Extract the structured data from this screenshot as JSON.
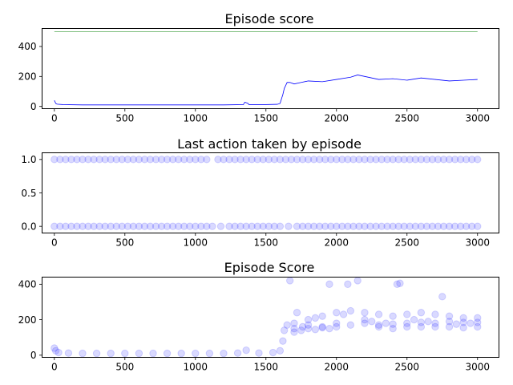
{
  "chart_data": [
    {
      "type": "line",
      "title": "Episode score",
      "xlabel": "",
      "ylabel": "",
      "xlim": [
        -87,
        3152
      ],
      "ylim": [
        -15,
        520
      ],
      "xticks": [
        0,
        500,
        1000,
        1500,
        2000,
        2500,
        3000
      ],
      "yticks": [
        0,
        200,
        400
      ],
      "x_ticklabels": [
        "0",
        "500",
        "1000",
        "1500",
        "2000",
        "2500",
        "3000"
      ],
      "y_ticklabels": [
        "0",
        "200",
        "400"
      ],
      "grid": false,
      "series": [
        {
          "color": "#0000ff",
          "x": [
            0,
            10,
            20,
            60,
            200,
            400,
            600,
            800,
            1000,
            1200,
            1340,
            1350,
            1370,
            1380,
            1500,
            1580,
            1600,
            1610,
            1620,
            1630,
            1650,
            1670,
            1700,
            1750,
            1800,
            1900,
            2000,
            2100,
            2150,
            2200,
            2300,
            2400,
            2500,
            2600,
            2700,
            2800,
            2900,
            3000
          ],
          "y": [
            40,
            20,
            15,
            12,
            10,
            10,
            10,
            10,
            10,
            10,
            12,
            28,
            22,
            12,
            12,
            14,
            20,
            50,
            80,
            120,
            160,
            160,
            150,
            160,
            170,
            165,
            180,
            195,
            210,
            200,
            180,
            185,
            175,
            190,
            180,
            170,
            175,
            180
          ]
        },
        {
          "color": "#008000",
          "x": [
            0,
            3000
          ],
          "y": [
            500,
            500
          ]
        }
      ]
    },
    {
      "type": "scatter",
      "title": "Last action taken by episode",
      "xlabel": "",
      "ylabel": "",
      "xlim": [
        -87,
        3152
      ],
      "ylim": [
        -0.1,
        1.1
      ],
      "xticks": [
        0,
        500,
        1000,
        1500,
        2000,
        2500,
        3000
      ],
      "yticks": [
        0.0,
        0.5,
        1.0
      ],
      "x_ticklabels": [
        "0",
        "500",
        "1000",
        "1500",
        "2000",
        "2500",
        "3000"
      ],
      "y_ticklabels": [
        "0.0",
        "0.5",
        "1.0"
      ],
      "grid": false,
      "color": "#0000ff",
      "alpha": 0.15,
      "points": [
        {
          "x": 0,
          "y": 1
        },
        {
          "x": 40,
          "y": 1
        },
        {
          "x": 80,
          "y": 1
        },
        {
          "x": 120,
          "y": 1
        },
        {
          "x": 160,
          "y": 1
        },
        {
          "x": 200,
          "y": 1
        },
        {
          "x": 240,
          "y": 1
        },
        {
          "x": 280,
          "y": 1
        },
        {
          "x": 320,
          "y": 1
        },
        {
          "x": 360,
          "y": 1
        },
        {
          "x": 400,
          "y": 1
        },
        {
          "x": 440,
          "y": 1
        },
        {
          "x": 480,
          "y": 1
        },
        {
          "x": 520,
          "y": 1
        },
        {
          "x": 560,
          "y": 1
        },
        {
          "x": 600,
          "y": 1
        },
        {
          "x": 640,
          "y": 1
        },
        {
          "x": 680,
          "y": 1
        },
        {
          "x": 720,
          "y": 1
        },
        {
          "x": 760,
          "y": 1
        },
        {
          "x": 800,
          "y": 1
        },
        {
          "x": 840,
          "y": 1
        },
        {
          "x": 880,
          "y": 1
        },
        {
          "x": 920,
          "y": 1
        },
        {
          "x": 960,
          "y": 1
        },
        {
          "x": 1000,
          "y": 1
        },
        {
          "x": 1040,
          "y": 1
        },
        {
          "x": 1080,
          "y": 1
        },
        {
          "x": 1160,
          "y": 1
        },
        {
          "x": 1200,
          "y": 1
        },
        {
          "x": 1240,
          "y": 1
        },
        {
          "x": 1280,
          "y": 1
        },
        {
          "x": 1320,
          "y": 1
        },
        {
          "x": 1360,
          "y": 1
        },
        {
          "x": 1400,
          "y": 1
        },
        {
          "x": 1440,
          "y": 1
        },
        {
          "x": 1480,
          "y": 1
        },
        {
          "x": 1520,
          "y": 1
        },
        {
          "x": 1560,
          "y": 1
        },
        {
          "x": 1600,
          "y": 1
        },
        {
          "x": 1640,
          "y": 1
        },
        {
          "x": 1680,
          "y": 1
        },
        {
          "x": 1720,
          "y": 1
        },
        {
          "x": 1760,
          "y": 1
        },
        {
          "x": 1800,
          "y": 1
        },
        {
          "x": 1840,
          "y": 1
        },
        {
          "x": 1880,
          "y": 1
        },
        {
          "x": 1920,
          "y": 1
        },
        {
          "x": 1960,
          "y": 1
        },
        {
          "x": 2000,
          "y": 1
        },
        {
          "x": 2040,
          "y": 1
        },
        {
          "x": 2080,
          "y": 1
        },
        {
          "x": 2120,
          "y": 1
        },
        {
          "x": 2160,
          "y": 1
        },
        {
          "x": 2200,
          "y": 1
        },
        {
          "x": 2240,
          "y": 1
        },
        {
          "x": 2280,
          "y": 1
        },
        {
          "x": 2320,
          "y": 1
        },
        {
          "x": 2360,
          "y": 1
        },
        {
          "x": 2400,
          "y": 1
        },
        {
          "x": 2440,
          "y": 1
        },
        {
          "x": 2480,
          "y": 1
        },
        {
          "x": 2520,
          "y": 1
        },
        {
          "x": 2560,
          "y": 1
        },
        {
          "x": 2600,
          "y": 1
        },
        {
          "x": 2640,
          "y": 1
        },
        {
          "x": 2680,
          "y": 1
        },
        {
          "x": 2720,
          "y": 1
        },
        {
          "x": 2760,
          "y": 1
        },
        {
          "x": 2800,
          "y": 1
        },
        {
          "x": 2840,
          "y": 1
        },
        {
          "x": 2880,
          "y": 1
        },
        {
          "x": 2920,
          "y": 1
        },
        {
          "x": 2960,
          "y": 1
        },
        {
          "x": 3000,
          "y": 1
        },
        {
          "x": 0,
          "y": 0
        },
        {
          "x": 40,
          "y": 0
        },
        {
          "x": 80,
          "y": 0
        },
        {
          "x": 120,
          "y": 0
        },
        {
          "x": 160,
          "y": 0
        },
        {
          "x": 200,
          "y": 0
        },
        {
          "x": 240,
          "y": 0
        },
        {
          "x": 280,
          "y": 0
        },
        {
          "x": 320,
          "y": 0
        },
        {
          "x": 360,
          "y": 0
        },
        {
          "x": 400,
          "y": 0
        },
        {
          "x": 440,
          "y": 0
        },
        {
          "x": 480,
          "y": 0
        },
        {
          "x": 520,
          "y": 0
        },
        {
          "x": 560,
          "y": 0
        },
        {
          "x": 600,
          "y": 0
        },
        {
          "x": 640,
          "y": 0
        },
        {
          "x": 680,
          "y": 0
        },
        {
          "x": 720,
          "y": 0
        },
        {
          "x": 760,
          "y": 0
        },
        {
          "x": 800,
          "y": 0
        },
        {
          "x": 840,
          "y": 0
        },
        {
          "x": 880,
          "y": 0
        },
        {
          "x": 920,
          "y": 0
        },
        {
          "x": 960,
          "y": 0
        },
        {
          "x": 1000,
          "y": 0
        },
        {
          "x": 1040,
          "y": 0
        },
        {
          "x": 1080,
          "y": 0
        },
        {
          "x": 1120,
          "y": 0
        },
        {
          "x": 1180,
          "y": 0
        },
        {
          "x": 1240,
          "y": 0
        },
        {
          "x": 1280,
          "y": 0
        },
        {
          "x": 1320,
          "y": 0
        },
        {
          "x": 1360,
          "y": 0
        },
        {
          "x": 1400,
          "y": 0
        },
        {
          "x": 1440,
          "y": 0
        },
        {
          "x": 1480,
          "y": 0
        },
        {
          "x": 1520,
          "y": 0
        },
        {
          "x": 1560,
          "y": 0
        },
        {
          "x": 1600,
          "y": 0
        },
        {
          "x": 1660,
          "y": 0
        },
        {
          "x": 1720,
          "y": 0
        },
        {
          "x": 1760,
          "y": 0
        },
        {
          "x": 1800,
          "y": 0
        },
        {
          "x": 1840,
          "y": 0
        },
        {
          "x": 1880,
          "y": 0
        },
        {
          "x": 1920,
          "y": 0
        },
        {
          "x": 1960,
          "y": 0
        },
        {
          "x": 2000,
          "y": 0
        },
        {
          "x": 2040,
          "y": 0
        },
        {
          "x": 2080,
          "y": 0
        },
        {
          "x": 2120,
          "y": 0
        },
        {
          "x": 2160,
          "y": 0
        },
        {
          "x": 2200,
          "y": 0
        },
        {
          "x": 2240,
          "y": 0
        },
        {
          "x": 2280,
          "y": 0
        },
        {
          "x": 2320,
          "y": 0
        },
        {
          "x": 2360,
          "y": 0
        },
        {
          "x": 2400,
          "y": 0
        },
        {
          "x": 2440,
          "y": 0
        },
        {
          "x": 2480,
          "y": 0
        },
        {
          "x": 2520,
          "y": 0
        },
        {
          "x": 2560,
          "y": 0
        },
        {
          "x": 2600,
          "y": 0
        },
        {
          "x": 2640,
          "y": 0
        },
        {
          "x": 2680,
          "y": 0
        },
        {
          "x": 2720,
          "y": 0
        },
        {
          "x": 2760,
          "y": 0
        },
        {
          "x": 2800,
          "y": 0
        },
        {
          "x": 2840,
          "y": 0
        },
        {
          "x": 2880,
          "y": 0
        },
        {
          "x": 2920,
          "y": 0
        },
        {
          "x": 2960,
          "y": 0
        },
        {
          "x": 3000,
          "y": 0
        }
      ]
    },
    {
      "type": "scatter",
      "title": "Episode Score",
      "xlabel": "",
      "ylabel": "",
      "xlim": [
        -87,
        3152
      ],
      "ylim": [
        -12,
        440
      ],
      "xticks": [
        0,
        500,
        1000,
        1500,
        2000,
        2500,
        3000
      ],
      "yticks": [
        0,
        200,
        400
      ],
      "x_ticklabels": [
        "0",
        "500",
        "1000",
        "1500",
        "2000",
        "2500",
        "3000"
      ],
      "y_ticklabels": [
        "0",
        "200",
        "400"
      ],
      "grid": false,
      "color": "#0000ff",
      "alpha": 0.15,
      "points": [
        {
          "x": 0,
          "y": 40
        },
        {
          "x": 10,
          "y": 25
        },
        {
          "x": 30,
          "y": 15
        },
        {
          "x": 100,
          "y": 12
        },
        {
          "x": 200,
          "y": 10
        },
        {
          "x": 300,
          "y": 10
        },
        {
          "x": 400,
          "y": 10
        },
        {
          "x": 500,
          "y": 10
        },
        {
          "x": 600,
          "y": 10
        },
        {
          "x": 700,
          "y": 10
        },
        {
          "x": 800,
          "y": 10
        },
        {
          "x": 900,
          "y": 10
        },
        {
          "x": 1000,
          "y": 10
        },
        {
          "x": 1100,
          "y": 10
        },
        {
          "x": 1200,
          "y": 10
        },
        {
          "x": 1300,
          "y": 12
        },
        {
          "x": 1360,
          "y": 28
        },
        {
          "x": 1450,
          "y": 12
        },
        {
          "x": 1550,
          "y": 15
        },
        {
          "x": 1600,
          "y": 25
        },
        {
          "x": 1620,
          "y": 80
        },
        {
          "x": 1630,
          "y": 140
        },
        {
          "x": 1650,
          "y": 170
        },
        {
          "x": 1670,
          "y": 420
        },
        {
          "x": 1700,
          "y": 150
        },
        {
          "x": 1720,
          "y": 240
        },
        {
          "x": 1760,
          "y": 160
        },
        {
          "x": 1800,
          "y": 170
        },
        {
          "x": 1850,
          "y": 210
        },
        {
          "x": 1900,
          "y": 160
        },
        {
          "x": 1950,
          "y": 400
        },
        {
          "x": 2000,
          "y": 180
        },
        {
          "x": 2050,
          "y": 230
        },
        {
          "x": 2080,
          "y": 400
        },
        {
          "x": 2150,
          "y": 420
        },
        {
          "x": 2200,
          "y": 200
        },
        {
          "x": 2250,
          "y": 190
        },
        {
          "x": 2300,
          "y": 170
        },
        {
          "x": 2350,
          "y": 180
        },
        {
          "x": 2400,
          "y": 175
        },
        {
          "x": 2430,
          "y": 400
        },
        {
          "x": 2450,
          "y": 405
        },
        {
          "x": 2500,
          "y": 180
        },
        {
          "x": 2550,
          "y": 200
        },
        {
          "x": 2600,
          "y": 185
        },
        {
          "x": 2650,
          "y": 190
        },
        {
          "x": 2700,
          "y": 180
        },
        {
          "x": 2750,
          "y": 330
        },
        {
          "x": 2800,
          "y": 190
        },
        {
          "x": 2850,
          "y": 175
        },
        {
          "x": 2900,
          "y": 185
        },
        {
          "x": 2950,
          "y": 180
        },
        {
          "x": 3000,
          "y": 185
        },
        {
          "x": 1700,
          "y": 130
        },
        {
          "x": 1750,
          "y": 140
        },
        {
          "x": 1800,
          "y": 150
        },
        {
          "x": 1850,
          "y": 145
        },
        {
          "x": 1900,
          "y": 155
        },
        {
          "x": 1950,
          "y": 150
        },
        {
          "x": 2000,
          "y": 160
        },
        {
          "x": 2100,
          "y": 170
        },
        {
          "x": 2200,
          "y": 180
        },
        {
          "x": 2300,
          "y": 160
        },
        {
          "x": 2400,
          "y": 150
        },
        {
          "x": 2500,
          "y": 160
        },
        {
          "x": 2600,
          "y": 160
        },
        {
          "x": 2700,
          "y": 160
        },
        {
          "x": 2800,
          "y": 160
        },
        {
          "x": 2900,
          "y": 155
        },
        {
          "x": 3000,
          "y": 160
        },
        {
          "x": 1700,
          "y": 180
        },
        {
          "x": 1800,
          "y": 200
        },
        {
          "x": 1900,
          "y": 220
        },
        {
          "x": 2000,
          "y": 240
        },
        {
          "x": 2100,
          "y": 250
        },
        {
          "x": 2200,
          "y": 240
        },
        {
          "x": 2300,
          "y": 230
        },
        {
          "x": 2400,
          "y": 220
        },
        {
          "x": 2500,
          "y": 230
        },
        {
          "x": 2600,
          "y": 240
        },
        {
          "x": 2700,
          "y": 230
        },
        {
          "x": 2800,
          "y": 220
        },
        {
          "x": 2900,
          "y": 210
        },
        {
          "x": 3000,
          "y": 210
        }
      ]
    }
  ]
}
